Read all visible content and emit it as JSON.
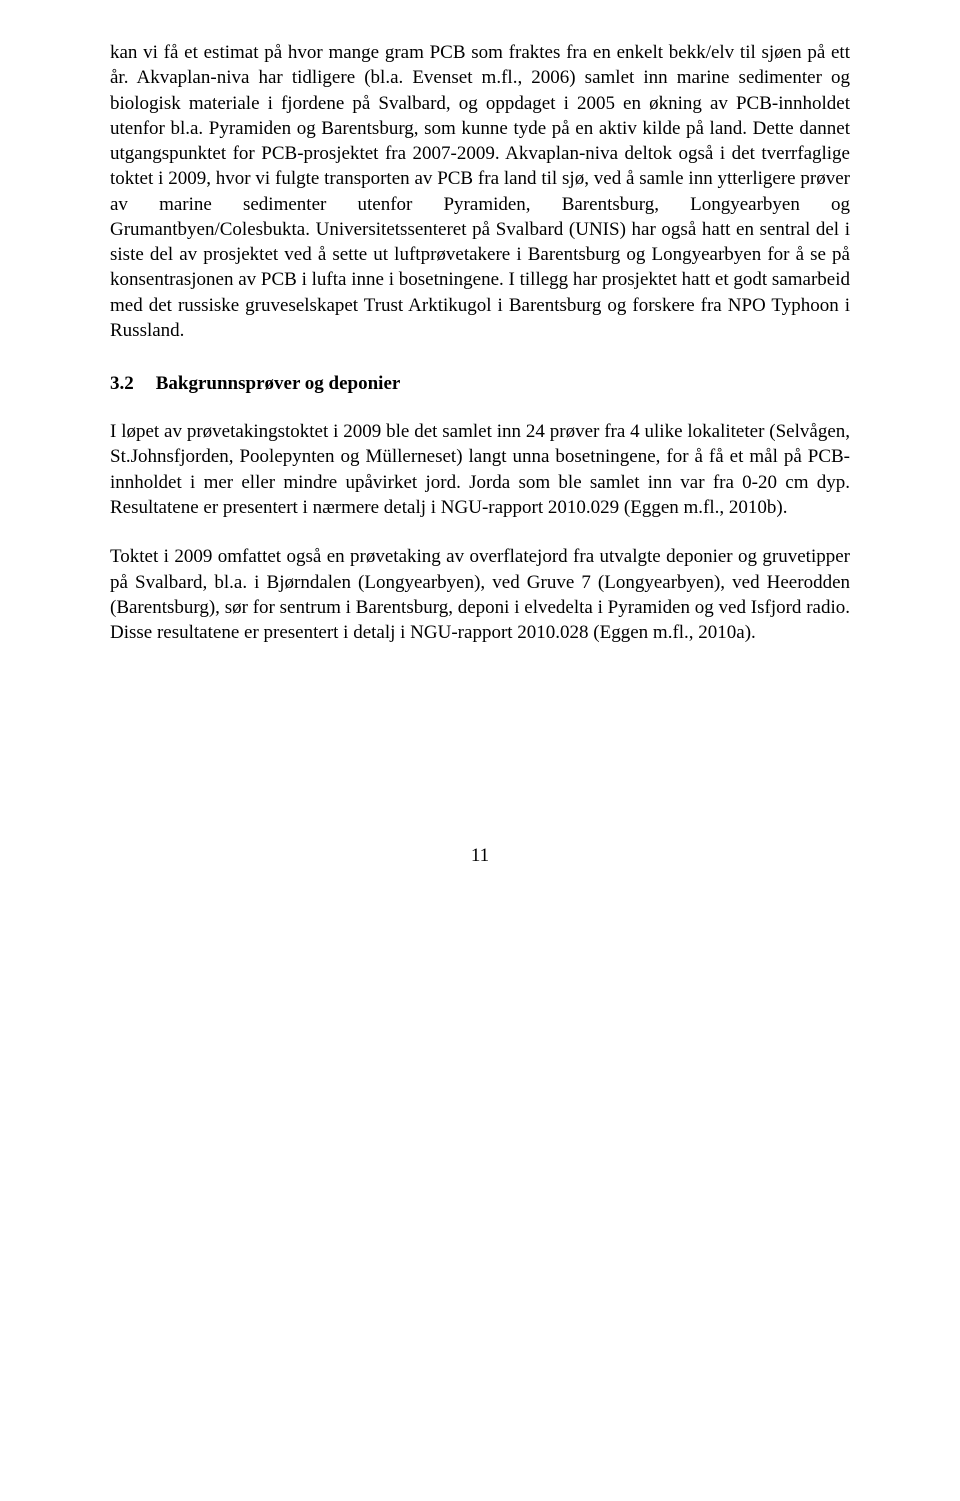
{
  "paragraphs": {
    "p1": "kan vi få et estimat på hvor mange gram PCB som fraktes fra en enkelt bekk/elv til sjøen på ett år. Akvaplan-niva har tidligere (bl.a. Evenset m.fl., 2006) samlet inn marine sedimenter og biologisk materiale i fjordene på Svalbard, og oppdaget i 2005 en økning av PCB-innholdet utenfor bl.a. Pyramiden og Barentsburg, som kunne tyde på en aktiv kilde på land. Dette dannet utgangspunktet for PCB-prosjektet fra 2007-2009. Akvaplan-niva deltok også i det tverrfaglige toktet i 2009, hvor vi fulgte transporten av PCB fra land til sjø, ved å samle inn ytterligere prøver av marine sedimenter utenfor Pyramiden, Barentsburg, Longyearbyen og Grumantbyen/Colesbukta. Universitetssenteret på Svalbard (UNIS) har også hatt en sentral del i siste del av prosjektet ved å sette ut luftprøvetakere i Barentsburg og Longyearbyen for å se på konsentrasjonen av PCB i lufta inne i bosetningene. I tillegg har prosjektet hatt et godt samarbeid med det russiske gruveselskapet Trust Arktikugol i Barentsburg og forskere fra NPO Typhoon i Russland.",
    "p2": "I løpet av prøvetakingstoktet i 2009 ble det samlet inn 24 prøver fra 4 ulike lokaliteter (Selvågen, St.Johnsfjorden, Poolepynten og Müllerneset) langt unna bosetningene, for å få et mål på PCB-innholdet i mer eller mindre upåvirket jord. Jorda som ble samlet inn var fra 0-20 cm dyp. Resultatene er presentert i nærmere detalj i NGU-rapport 2010.029 (Eggen m.fl., 2010b).",
    "p3": "Toktet i 2009 omfattet også en prøvetaking av overflatejord fra utvalgte deponier og gruvetipper på Svalbard, bl.a. i Bjørndalen (Longyearbyen), ved Gruve 7 (Longyearbyen), ved Heerodden (Barentsburg), sør for sentrum i Barentsburg, deponi i elvedelta i Pyramiden og ved Isfjord radio. Disse resultatene er presentert i detalj i NGU-rapport 2010.028 (Eggen m.fl., 2010a)."
  },
  "section": {
    "number": "3.2",
    "title": "Bakgrunnsprøver og deponier"
  },
  "pageNumber": "11"
}
